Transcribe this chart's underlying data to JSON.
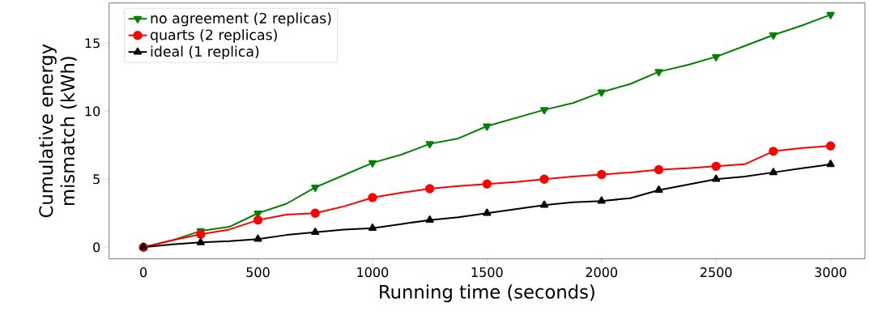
{
  "chart_data": {
    "type": "line",
    "xlabel": "Running time (seconds)",
    "ylabel": "Cumulative energy\nmismatch (kWh)",
    "x": [
      0,
      125,
      250,
      375,
      500,
      625,
      750,
      875,
      1000,
      1125,
      1250,
      1375,
      1500,
      1625,
      1750,
      1875,
      2000,
      2125,
      2250,
      2375,
      2500,
      2625,
      2750,
      2875,
      3000
    ],
    "series": [
      {
        "name": "no agreement (2 replicas)",
        "color": "#008000",
        "marker": "triangle-down",
        "values": [
          0,
          0.5,
          1.2,
          1.5,
          2.5,
          3.2,
          4.4,
          5.3,
          6.2,
          6.8,
          7.6,
          8.0,
          8.9,
          9.5,
          10.1,
          10.6,
          11.4,
          12.0,
          12.9,
          13.4,
          14.0,
          14.8,
          15.6,
          16.3,
          17.1
        ]
      },
      {
        "name": "quarts    (2 replicas)",
        "color": "#ff0000",
        "marker": "circle",
        "values": [
          0,
          0.5,
          0.95,
          1.3,
          2.0,
          2.4,
          2.5,
          3.0,
          3.65,
          4.0,
          4.3,
          4.5,
          4.65,
          4.8,
          5.0,
          5.2,
          5.35,
          5.5,
          5.7,
          5.8,
          5.95,
          6.1,
          7.05,
          7.3,
          7.45
        ]
      },
      {
        "name": "ideal (1 replica)",
        "color": "#000000",
        "marker": "triangle",
        "values": [
          0,
          0.2,
          0.35,
          0.45,
          0.6,
          0.9,
          1.1,
          1.3,
          1.4,
          1.7,
          2.0,
          2.2,
          2.5,
          2.8,
          3.1,
          3.3,
          3.4,
          3.6,
          4.2,
          4.6,
          5.0,
          5.2,
          5.5,
          5.8,
          6.1
        ]
      }
    ],
    "xlim": [
      -150,
      3150
    ],
    "ylim": [
      -0.86,
      17.96
    ],
    "xticks": [
      0,
      500,
      1000,
      1500,
      2000,
      2500,
      3000
    ],
    "yticks": [
      0,
      5,
      10,
      15
    ],
    "legend": "top left",
    "line_style": "solid"
  }
}
